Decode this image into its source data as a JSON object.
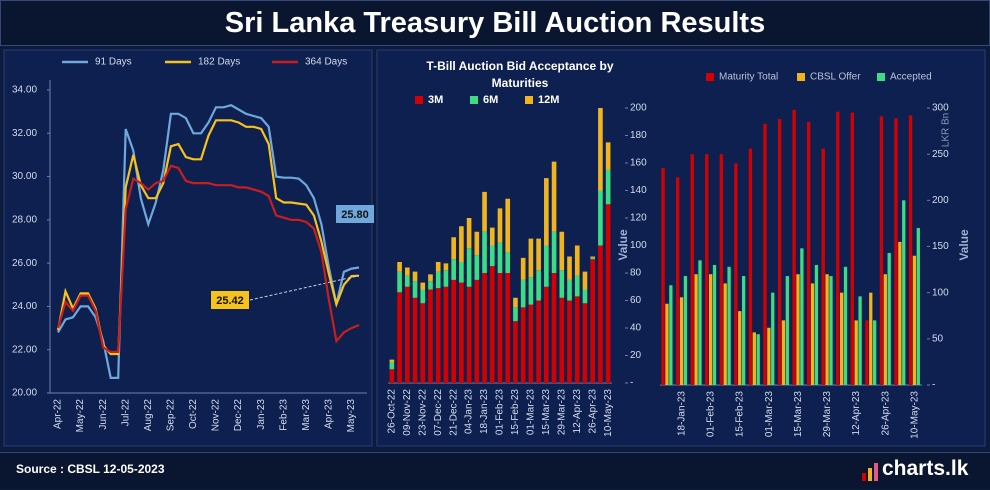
{
  "title": "Sri Lanka Treasury Bill Auction Results",
  "footer": {
    "source": "Source : CBSL  12-05-2023",
    "brand": "charts.lk"
  },
  "chart_data": [
    {
      "type": "line",
      "categories": [
        "Apr-22",
        null,
        null,
        "May-22",
        null,
        null,
        "Jun-22",
        null,
        null,
        "Jul-22",
        null,
        null,
        "Aug-22",
        null,
        null,
        "Sep-22",
        null,
        null,
        "Oct-22",
        null,
        null,
        "Nov-22",
        null,
        null,
        "Dec-22",
        null,
        null,
        "Jan-23",
        null,
        null,
        "Feb-23",
        null,
        null,
        "Mar-23",
        null,
        null,
        "Apr-23",
        null,
        null,
        "May-23",
        null
      ],
      "ylim": [
        20,
        34
      ],
      "yticks": [
        {
          "value": 20,
          "label": "20.00"
        },
        {
          "value": 22,
          "label": "22.00"
        },
        {
          "value": 24,
          "label": "24.00"
        },
        {
          "value": 26,
          "label": "26.00"
        },
        {
          "value": 28,
          "label": "28.00"
        },
        {
          "value": 30,
          "label": "30.00"
        },
        {
          "value": 32,
          "label": "32.00"
        },
        {
          "value": 34,
          "label": "34.00"
        }
      ],
      "series": [
        {
          "name": "91 Days",
          "color": "#6fa8dc",
          "values": [
            22.8,
            23.4,
            23.5,
            24.0,
            24.0,
            23.5,
            22.4,
            20.7,
            20.7,
            32.2,
            31.2,
            29.0,
            27.8,
            28.8,
            30.3,
            32.9,
            32.9,
            32.7,
            32.0,
            32.0,
            32.5,
            33.2,
            33.2,
            33.3,
            33.1,
            32.9,
            32.8,
            32.7,
            32.3,
            30.0,
            29.95,
            29.95,
            29.9,
            29.6,
            29.0,
            27.8,
            25.8,
            24.1,
            25.6,
            25.75,
            25.8
          ],
          "value_labels": [
            null,
            null,
            null,
            null,
            null,
            null,
            null,
            null,
            null,
            null,
            null,
            null,
            null,
            null,
            null,
            null,
            null,
            null,
            null,
            null,
            null,
            null,
            null,
            null,
            null,
            null,
            null,
            null,
            null,
            null,
            null,
            null,
            null,
            null,
            null,
            null,
            null,
            null,
            null,
            null,
            "25.80"
          ]
        },
        {
          "name": "182 Days",
          "color": "#f6c21c",
          "values": [
            22.9,
            24.7,
            23.9,
            24.6,
            24.6,
            23.9,
            22.2,
            21.8,
            21.8,
            29.5,
            31.0,
            29.6,
            29.0,
            29.0,
            29.7,
            31.4,
            31.5,
            30.9,
            30.8,
            30.8,
            31.9,
            32.6,
            32.6,
            32.6,
            32.5,
            32.3,
            32.3,
            32.2,
            31.5,
            29.0,
            28.8,
            28.8,
            28.75,
            28.7,
            28.2,
            27.0,
            25.5,
            24.1,
            25.0,
            25.4,
            25.42
          ],
          "value_labels": [
            null,
            null,
            null,
            null,
            null,
            null,
            null,
            null,
            null,
            null,
            null,
            null,
            null,
            null,
            null,
            null,
            null,
            null,
            null,
            null,
            null,
            null,
            null,
            null,
            null,
            null,
            null,
            null,
            null,
            null,
            null,
            null,
            null,
            null,
            null,
            null,
            null,
            null,
            null,
            null,
            "25.42"
          ]
        },
        {
          "name": "364 Days",
          "color": "#c81e1e",
          "values": [
            23.0,
            24.2,
            23.8,
            24.5,
            24.5,
            23.8,
            22.1,
            21.9,
            21.9,
            28.5,
            29.9,
            29.7,
            29.4,
            29.7,
            29.8,
            30.5,
            30.4,
            29.8,
            29.7,
            29.7,
            29.7,
            29.6,
            29.6,
            29.6,
            29.5,
            29.5,
            29.4,
            29.3,
            29.1,
            28.2,
            28.1,
            28.0,
            28.0,
            27.9,
            27.6,
            26.5,
            24.3,
            22.4,
            22.8,
            23.0,
            23.14
          ]
        }
      ]
    },
    {
      "type": "bar",
      "stacked": true,
      "title": "T-Bill Auction Bid Acceptance by Maturities",
      "y_label": "Value",
      "categories": [
        "26-Oct-22",
        null,
        "09-Nov-22",
        null,
        "23-Nov-22",
        null,
        "07-Dec-22",
        null,
        "21-Dec-22",
        null,
        "04-Jan-23",
        null,
        "18-Jan-23",
        null,
        "01-Feb-23",
        null,
        "15-Feb-23",
        null,
        "01-Mar-23",
        null,
        "15-Mar-23",
        null,
        "29-Mar-23",
        null,
        "12-Apr-23",
        null,
        "26-Apr-23",
        null,
        "10-May-23"
      ],
      "ylim": [
        0,
        200
      ],
      "yticks": [
        {
          "value": 0,
          "label": "-"
        },
        20,
        40,
        60,
        80,
        100,
        120,
        140,
        160,
        180,
        200
      ],
      "series": [
        {
          "name": "3M",
          "color": "#d40000",
          "values": [
            10,
            66,
            70,
            62,
            58,
            68,
            69,
            70,
            75,
            73,
            70,
            75,
            80,
            85,
            80,
            80,
            45,
            55,
            57,
            60,
            70,
            80,
            62,
            60,
            63,
            58,
            90,
            100,
            130
          ]
        },
        {
          "name": "6M",
          "color": "#3ddc84",
          "values": [
            5,
            15,
            8,
            12,
            10,
            6,
            12,
            12,
            15,
            15,
            28,
            18,
            30,
            15,
            22,
            15,
            10,
            20,
            20,
            22,
            30,
            30,
            20,
            15,
            15,
            10,
            1,
            40,
            25
          ]
        },
        {
          "name": "12M",
          "color": "#f0b41e",
          "values": [
            2,
            7,
            6,
            7,
            5,
            5,
            7,
            5,
            16,
            26,
            22,
            17,
            29,
            13,
            25,
            39,
            7,
            16,
            28,
            23,
            49,
            51,
            28,
            17,
            22,
            13,
            1,
            60,
            20
          ]
        }
      ]
    },
    {
      "type": "bar",
      "stacked": false,
      "y2_label": "Value",
      "y2_unit": "LKR Bn",
      "categories": [
        null,
        "18-Jan-23",
        null,
        "01-Feb-23",
        null,
        "15-Feb-23",
        null,
        "01-Mar-23",
        null,
        "15-Mar-23",
        null,
        "29-Mar-23",
        null,
        "12-Apr-23",
        null,
        "26-Apr-23",
        null,
        "10-May-23"
      ],
      "y2lim": [
        0,
        300
      ],
      "y2ticks": [
        {
          "value": 0,
          "label": "-"
        },
        50,
        100,
        150,
        200,
        250,
        300
      ],
      "series": [
        {
          "name": "Maturity Total",
          "color": "#d40000",
          "axis": "y2",
          "values": [
            235,
            225,
            250,
            250,
            250,
            240,
            256,
            283,
            288,
            298,
            285,
            256,
            296,
            295,
            70,
            291,
            289,
            292
          ]
        },
        {
          "name": "CBSL Offer",
          "color": "#f0b41e",
          "axis": "y2",
          "values": [
            88,
            95,
            120,
            120,
            110,
            80,
            57,
            62,
            70,
            120,
            110,
            120,
            100,
            70,
            100,
            120,
            155,
            140
          ]
        },
        {
          "name": "Accepted",
          "color": "#3ddc84",
          "axis": "y2",
          "values": [
            108,
            118,
            135,
            130,
            128,
            118,
            55,
            100,
            118,
            148,
            130,
            118,
            128,
            96,
            70,
            143,
            200,
            170
          ]
        }
      ]
    }
  ]
}
